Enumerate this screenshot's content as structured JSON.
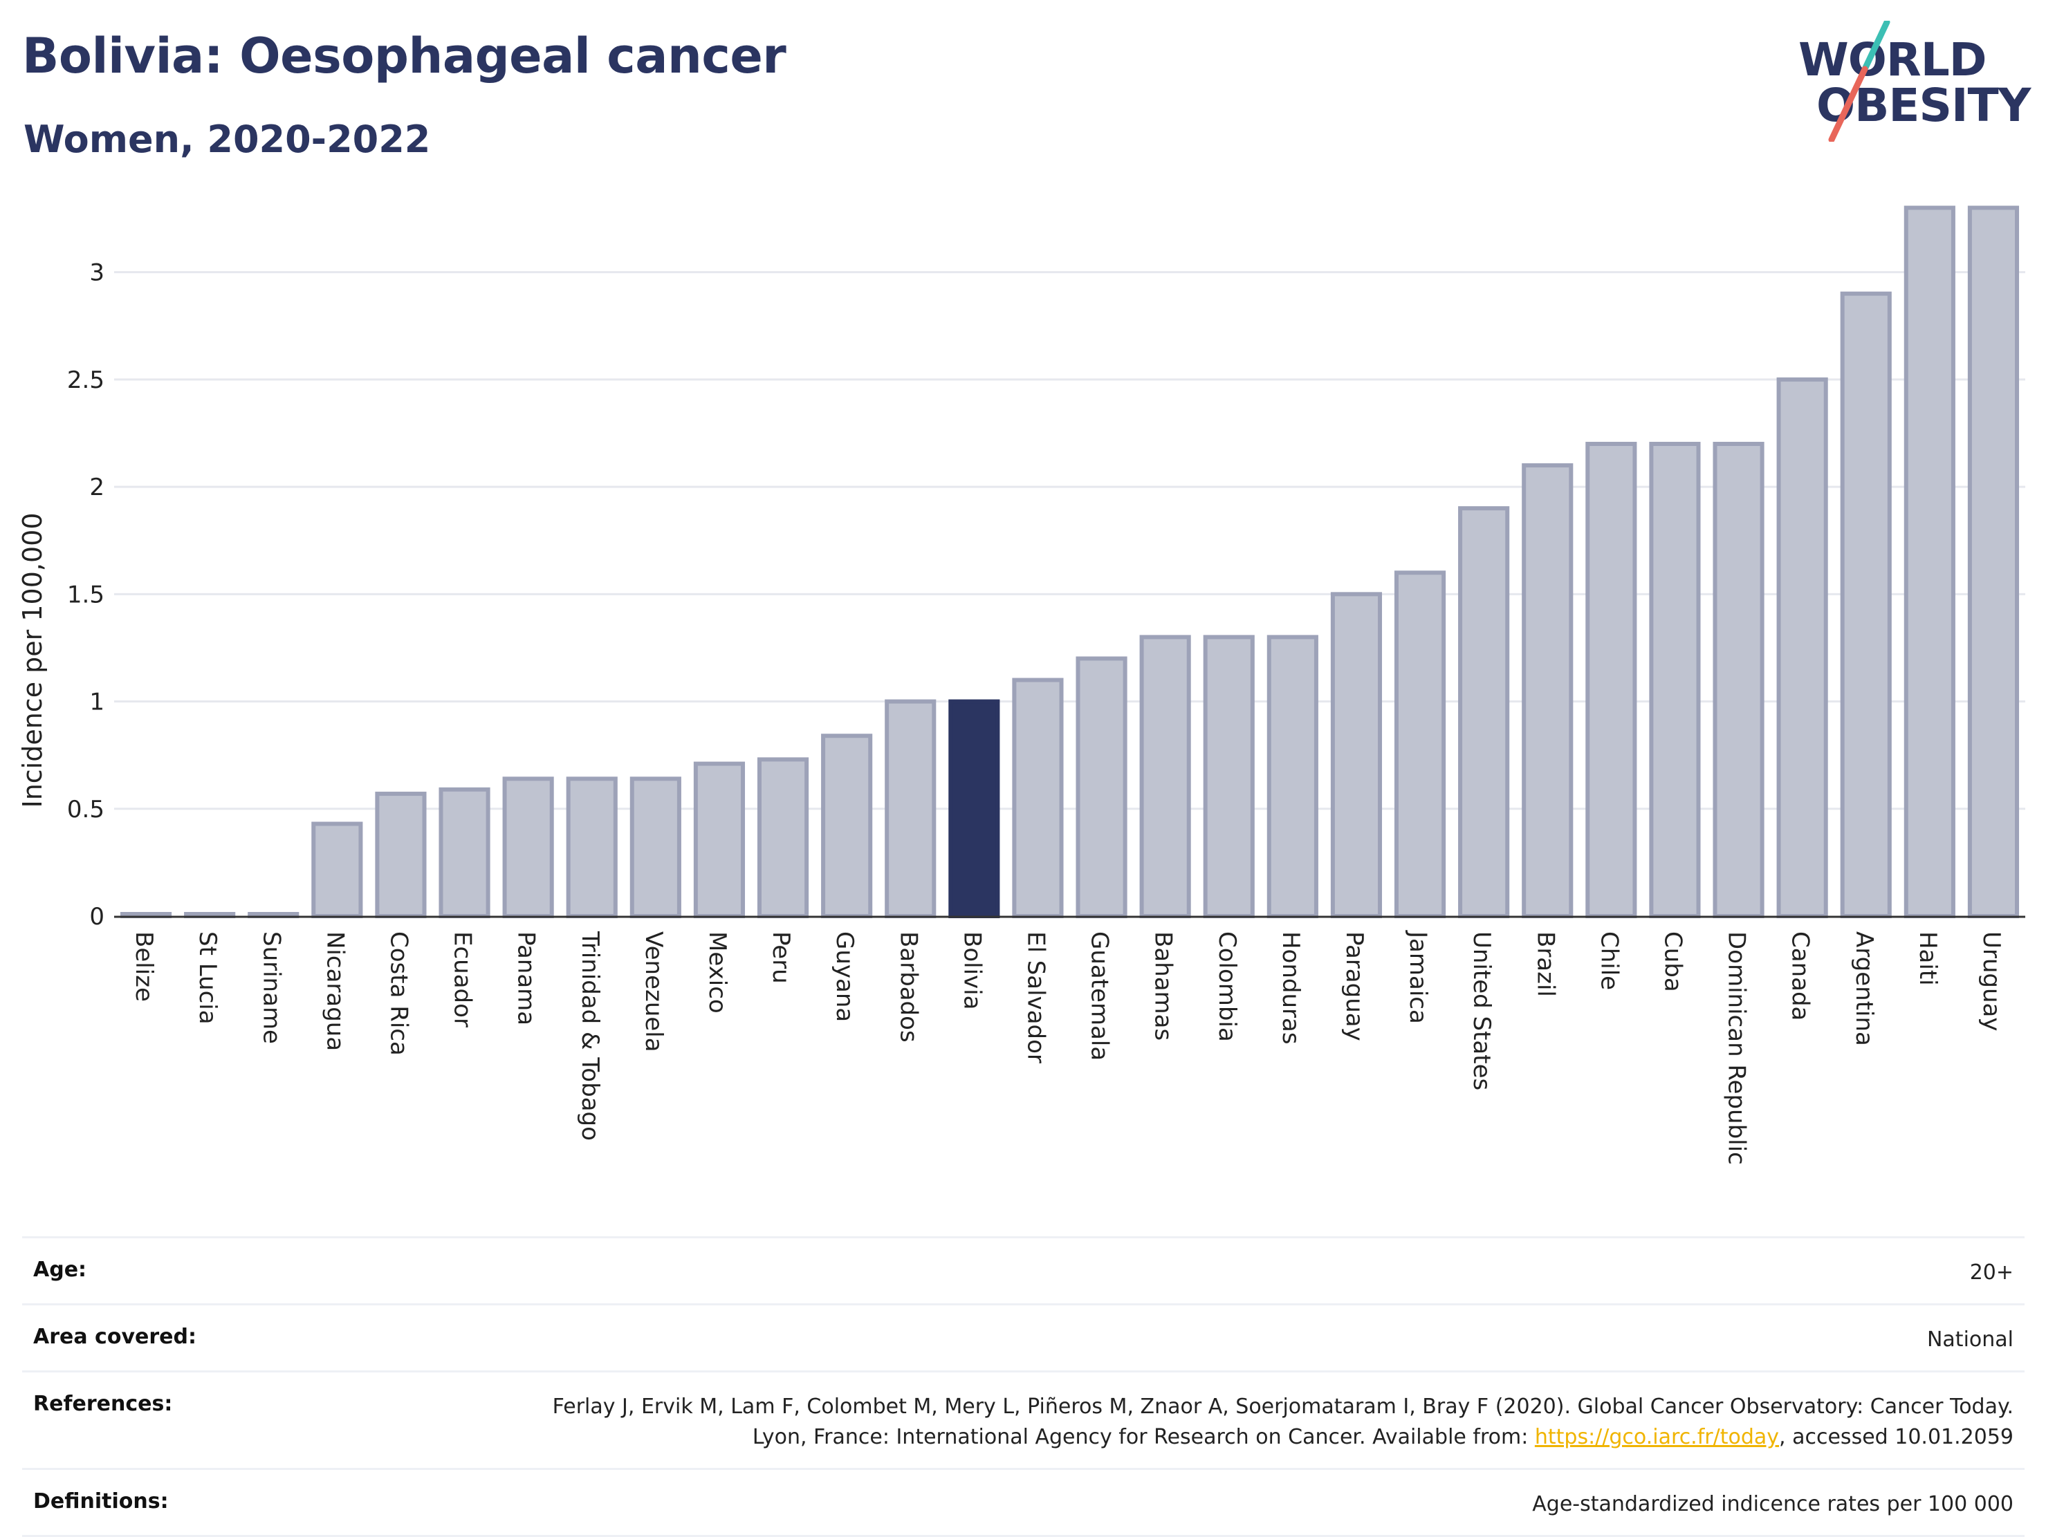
{
  "title": "Bolivia: Oesophageal cancer",
  "subtitle": "Women, 2020-2022",
  "logo": {
    "line1": "WORLD",
    "line2": "OBESITY"
  },
  "colors": {
    "highlight": "#2b3561",
    "bar": "#bfc3d0",
    "bar_border": "#9da2b8",
    "title": "#2b3561",
    "link": "#f0b400"
  },
  "chart_data": {
    "type": "bar",
    "ylabel": "Incidence per 100,000",
    "xlabel": "",
    "ylim": [
      0,
      3.35
    ],
    "yticks": [
      0,
      0.5,
      1,
      1.5,
      2,
      2.5,
      3
    ],
    "ytick_labels": [
      "0",
      "0.5",
      "1",
      "1.5",
      "2",
      "2.5",
      "3"
    ],
    "grid": true,
    "highlight": "Bolivia",
    "categories": [
      "Belize",
      "St Lucia",
      "Suriname",
      "Nicaragua",
      "Costa Rica",
      "Ecuador",
      "Panama",
      "Trinidad & Tobago",
      "Venezuela",
      "Mexico",
      "Peru",
      "Guyana",
      "Barbados",
      "Bolivia",
      "El Salvador",
      "Guatemala",
      "Bahamas",
      "Colombia",
      "Honduras",
      "Paraguay",
      "Jamaica",
      "United States",
      "Brazil",
      "Chile",
      "Cuba",
      "Dominican Republic",
      "Canada",
      "Argentina",
      "Haiti",
      "Uruguay"
    ],
    "values": [
      0,
      0,
      0,
      0.43,
      0.57,
      0.59,
      0.64,
      0.64,
      0.64,
      0.71,
      0.73,
      0.84,
      1.0,
      1.0,
      1.1,
      1.2,
      1.3,
      1.3,
      1.3,
      1.5,
      1.6,
      1.9,
      2.1,
      2.2,
      2.2,
      2.2,
      2.5,
      2.9,
      3.3,
      3.3
    ]
  },
  "info": {
    "age_key": "Age:",
    "age_val": "20+",
    "area_key": "Area covered:",
    "area_val": "National",
    "ref_key": "References:",
    "ref_text_1": "Ferlay J, Ervik M, Lam F, Colombet M, Mery L, Piñeros M, Znaor A, Soerjomataram I, Bray F (2020). Global Cancer Observatory: Cancer Today. Lyon, France: International Agency for Research on Cancer. Available from: ",
    "ref_link": "https://gco.iarc.fr/today",
    "ref_text_2": ", accessed 10.01.2059",
    "def_key": "Definitions:",
    "def_val": "Age-standardized indicence rates per 100 000"
  }
}
